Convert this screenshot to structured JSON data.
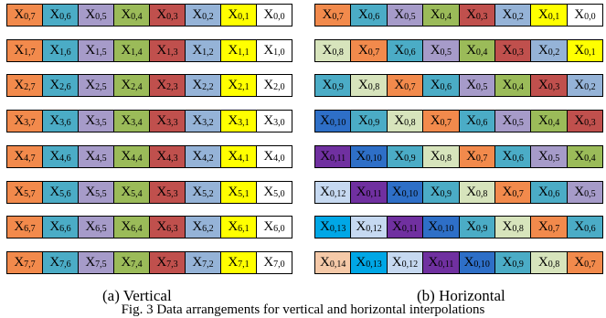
{
  "colors": {
    "orange": "#f28a4c",
    "teal": "#4bacc6",
    "lavender": "#a69bc9",
    "green": "#9bbb59",
    "red": "#c0504d",
    "steel": "#95b3d7",
    "yellow": "#ffff00",
    "white": "#ffffff",
    "sage": "#d7e4bc",
    "blue": "#2e6fc7",
    "purple": "#7030a0",
    "lightblue": "#c6d9f1",
    "cyan": "#00a7e6",
    "peach": "#f5c9a8"
  },
  "vertical": {
    "caption": "(a) Vertical",
    "rows": [
      [
        {
          "t": "X",
          "s": "0,7",
          "c": "orange"
        },
        {
          "t": "X",
          "s": "0,6",
          "c": "teal"
        },
        {
          "t": "X",
          "s": "0,5",
          "c": "lavender"
        },
        {
          "t": "X",
          "s": "0,4",
          "c": "green"
        },
        {
          "t": "X",
          "s": "0,3",
          "c": "red"
        },
        {
          "t": "X",
          "s": "0,2",
          "c": "steel"
        },
        {
          "t": "X",
          "s": "0,1",
          "c": "yellow"
        },
        {
          "t": "X",
          "s": "0,0",
          "c": "white"
        }
      ],
      [
        {
          "t": "X",
          "s": "1,7",
          "c": "orange"
        },
        {
          "t": "X",
          "s": "1,6",
          "c": "teal"
        },
        {
          "t": "X",
          "s": "1,5",
          "c": "lavender"
        },
        {
          "t": "X",
          "s": "1,4",
          "c": "green"
        },
        {
          "t": "X",
          "s": "1,3",
          "c": "red"
        },
        {
          "t": "X",
          "s": "1,2",
          "c": "steel"
        },
        {
          "t": "X",
          "s": "1,1",
          "c": "yellow"
        },
        {
          "t": "X",
          "s": "1,0",
          "c": "white"
        }
      ],
      [
        {
          "t": "X",
          "s": "2,7",
          "c": "orange"
        },
        {
          "t": "X",
          "s": "2,6",
          "c": "teal"
        },
        {
          "t": "X",
          "s": "2,5",
          "c": "lavender"
        },
        {
          "t": "X",
          "s": "2,4",
          "c": "green"
        },
        {
          "t": "X",
          "s": "2,3",
          "c": "red"
        },
        {
          "t": "X",
          "s": "2,2",
          "c": "steel"
        },
        {
          "t": "X",
          "s": "2,1",
          "c": "yellow"
        },
        {
          "t": "X",
          "s": "2,0",
          "c": "white"
        }
      ],
      [
        {
          "t": "X",
          "s": "3,7",
          "c": "orange"
        },
        {
          "t": "X",
          "s": "3,6",
          "c": "teal"
        },
        {
          "t": "X",
          "s": "3,5",
          "c": "lavender"
        },
        {
          "t": "X",
          "s": "3,4",
          "c": "green"
        },
        {
          "t": "X",
          "s": "3,3",
          "c": "red"
        },
        {
          "t": "X",
          "s": "3,2",
          "c": "steel"
        },
        {
          "t": "X",
          "s": "3,1",
          "c": "yellow"
        },
        {
          "t": "X",
          "s": "3,0",
          "c": "white"
        }
      ],
      [
        {
          "t": "X",
          "s": "4,7",
          "c": "orange"
        },
        {
          "t": "X",
          "s": "4,6",
          "c": "teal"
        },
        {
          "t": "X",
          "s": "4,5",
          "c": "lavender"
        },
        {
          "t": "X",
          "s": "4,4",
          "c": "green"
        },
        {
          "t": "X",
          "s": "4,3",
          "c": "red"
        },
        {
          "t": "X",
          "s": "4,2",
          "c": "steel"
        },
        {
          "t": "X",
          "s": "4,1",
          "c": "yellow"
        },
        {
          "t": "X",
          "s": "4,0",
          "c": "white"
        }
      ],
      [
        {
          "t": "X",
          "s": "5,7",
          "c": "orange"
        },
        {
          "t": "X",
          "s": "5,6",
          "c": "teal"
        },
        {
          "t": "X",
          "s": "5,5",
          "c": "lavender"
        },
        {
          "t": "X",
          "s": "5,4",
          "c": "green"
        },
        {
          "t": "X",
          "s": "5,3",
          "c": "red"
        },
        {
          "t": "X",
          "s": "5,2",
          "c": "steel"
        },
        {
          "t": "X",
          "s": "5,1",
          "c": "yellow"
        },
        {
          "t": "X",
          "s": "5,0",
          "c": "white"
        }
      ],
      [
        {
          "t": "X",
          "s": "6,7",
          "c": "orange"
        },
        {
          "t": "X",
          "s": "6,6",
          "c": "teal"
        },
        {
          "t": "X",
          "s": "6,5",
          "c": "lavender"
        },
        {
          "t": "X",
          "s": "6,4",
          "c": "green"
        },
        {
          "t": "X",
          "s": "6,3",
          "c": "red"
        },
        {
          "t": "X",
          "s": "6,2",
          "c": "steel"
        },
        {
          "t": "X",
          "s": "6,1",
          "c": "yellow"
        },
        {
          "t": "X",
          "s": "6,0",
          "c": "white"
        }
      ],
      [
        {
          "t": "X",
          "s": "7,7",
          "c": "orange"
        },
        {
          "t": "X",
          "s": "7,6",
          "c": "teal"
        },
        {
          "t": "X",
          "s": "7,5",
          "c": "lavender"
        },
        {
          "t": "X",
          "s": "7,4",
          "c": "green"
        },
        {
          "t": "X",
          "s": "7,3",
          "c": "red"
        },
        {
          "t": "X",
          "s": "7,2",
          "c": "steel"
        },
        {
          "t": "X",
          "s": "7,1",
          "c": "yellow"
        },
        {
          "t": "X",
          "s": "7,0",
          "c": "white"
        }
      ]
    ]
  },
  "horizontal": {
    "caption": "(b) Horizontal",
    "rows": [
      [
        {
          "t": "X",
          "s": "0,7",
          "c": "orange"
        },
        {
          "t": "X",
          "s": "0,6",
          "c": "teal"
        },
        {
          "t": "X",
          "s": "0,5",
          "c": "lavender"
        },
        {
          "t": "X",
          "s": "0,4",
          "c": "green"
        },
        {
          "t": "X",
          "s": "0,3",
          "c": "red"
        },
        {
          "t": "X",
          "s": "0,2",
          "c": "steel"
        },
        {
          "t": "X",
          "s": "0,1",
          "c": "yellow"
        },
        {
          "t": "X",
          "s": "0,0",
          "c": "white"
        }
      ],
      [
        {
          "t": "X",
          "s": "0,8",
          "c": "sage"
        },
        {
          "t": "X",
          "s": "0,7",
          "c": "orange"
        },
        {
          "t": "X",
          "s": "0,6",
          "c": "teal"
        },
        {
          "t": "X",
          "s": "0,5",
          "c": "lavender"
        },
        {
          "t": "X",
          "s": "0,4",
          "c": "green"
        },
        {
          "t": "X",
          "s": "0,3",
          "c": "red"
        },
        {
          "t": "X",
          "s": "0,2",
          "c": "steel"
        },
        {
          "t": "X",
          "s": "0,1",
          "c": "yellow"
        }
      ],
      [
        {
          "t": "X",
          "s": "0,9",
          "c": "teal"
        },
        {
          "t": "X",
          "s": "0,8",
          "c": "sage"
        },
        {
          "t": "X",
          "s": "0,7",
          "c": "orange"
        },
        {
          "t": "X",
          "s": "0,6",
          "c": "teal"
        },
        {
          "t": "X",
          "s": "0,5",
          "c": "lavender"
        },
        {
          "t": "X",
          "s": "0,4",
          "c": "green"
        },
        {
          "t": "X",
          "s": "0,3",
          "c": "red"
        },
        {
          "t": "X",
          "s": "0,2",
          "c": "steel"
        }
      ],
      [
        {
          "t": "X",
          "s": "0,10",
          "c": "blue"
        },
        {
          "t": "X",
          "s": "0,9",
          "c": "teal"
        },
        {
          "t": "X",
          "s": "0,8",
          "c": "sage"
        },
        {
          "t": "X",
          "s": "0,7",
          "c": "orange"
        },
        {
          "t": "X",
          "s": "0,6",
          "c": "teal"
        },
        {
          "t": "X",
          "s": "0,5",
          "c": "lavender"
        },
        {
          "t": "X",
          "s": "0,4",
          "c": "green"
        },
        {
          "t": "X",
          "s": "0,3",
          "c": "red"
        }
      ],
      [
        {
          "t": "X",
          "s": "0,11",
          "c": "purple"
        },
        {
          "t": "X",
          "s": "0,10",
          "c": "blue"
        },
        {
          "t": "X",
          "s": "0,9",
          "c": "teal"
        },
        {
          "t": "X",
          "s": "0,8",
          "c": "sage"
        },
        {
          "t": "X",
          "s": "0,7",
          "c": "orange"
        },
        {
          "t": "X",
          "s": "0,6",
          "c": "teal"
        },
        {
          "t": "X",
          "s": "0,5",
          "c": "lavender"
        },
        {
          "t": "X",
          "s": "0,4",
          "c": "green"
        }
      ],
      [
        {
          "t": "X",
          "s": "0,12",
          "c": "lightblue"
        },
        {
          "t": "X",
          "s": "0,11",
          "c": "purple"
        },
        {
          "t": "X",
          "s": "0,10",
          "c": "blue"
        },
        {
          "t": "X",
          "s": "0,9",
          "c": "teal"
        },
        {
          "t": "X",
          "s": "0,8",
          "c": "sage"
        },
        {
          "t": "X",
          "s": "0,7",
          "c": "orange"
        },
        {
          "t": "X",
          "s": "0,6",
          "c": "teal"
        },
        {
          "t": "X",
          "s": "0,5",
          "c": "lavender"
        }
      ],
      [
        {
          "t": "X",
          "s": "0,13",
          "c": "cyan"
        },
        {
          "t": "X",
          "s": "0,12",
          "c": "lightblue"
        },
        {
          "t": "X",
          "s": "0,11",
          "c": "purple"
        },
        {
          "t": "X",
          "s": "0,10",
          "c": "blue"
        },
        {
          "t": "X",
          "s": "0,9",
          "c": "teal"
        },
        {
          "t": "X",
          "s": "0,8",
          "c": "sage"
        },
        {
          "t": "X",
          "s": "0,7",
          "c": "orange"
        },
        {
          "t": "X",
          "s": "0,6",
          "c": "teal"
        }
      ],
      [
        {
          "t": "X",
          "s": "0,14",
          "c": "peach"
        },
        {
          "t": "X",
          "s": "0,13",
          "c": "cyan"
        },
        {
          "t": "X",
          "s": "0,12",
          "c": "lightblue"
        },
        {
          "t": "X",
          "s": "0,11",
          "c": "purple"
        },
        {
          "t": "X",
          "s": "0,10",
          "c": "blue"
        },
        {
          "t": "X",
          "s": "0,9",
          "c": "teal"
        },
        {
          "t": "X",
          "s": "0,8",
          "c": "sage"
        },
        {
          "t": "X",
          "s": "0,7",
          "c": "orange"
        }
      ]
    ]
  },
  "figure_caption": "Fig. 3 Data arrangements for vertical and horizontal interpolations"
}
